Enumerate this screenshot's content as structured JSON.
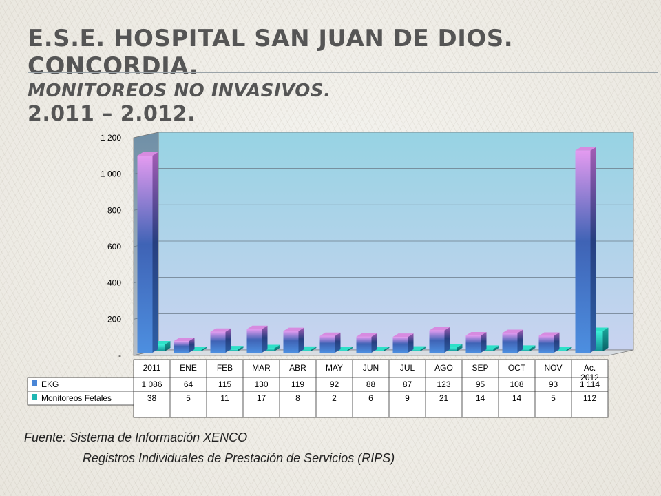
{
  "slide": {
    "title_line1": "E.S.E. HOSPITAL SAN JUAN DE DIOS.  CONCORDIA.",
    "title_line2": "MONITOREOS NO INVASIVOS.",
    "title_line3": "2.011 – 2.012.",
    "source_line1": "Fuente: Sistema de Información XENCO",
    "source_line2": "Registros Individuales de Prestación de Servicios (RIPS)"
  },
  "chart_data": {
    "type": "bar",
    "categories": [
      "2011",
      "ENE",
      "FEB",
      "MAR",
      "ABR",
      "MAY",
      "JUN",
      "JUL",
      "AGO",
      "SEP",
      "OCT",
      "NOV",
      "Ac.\n2012"
    ],
    "series": [
      {
        "name": "EKG",
        "values": [
          1086,
          64,
          115,
          130,
          119,
          92,
          88,
          87,
          123,
          95,
          108,
          93,
          1114
        ],
        "labels": [
          "1 086",
          "64",
          "115",
          "130",
          "119",
          "92",
          "88",
          "87",
          "123",
          "95",
          "108",
          "93",
          "1 114"
        ]
      },
      {
        "name": "Monitoreos Fetales",
        "values": [
          38,
          5,
          11,
          17,
          8,
          2,
          6,
          9,
          21,
          14,
          14,
          5,
          112
        ],
        "labels": [
          "38",
          "5",
          "11",
          "17",
          "8",
          "2",
          "6",
          "9",
          "21",
          "14",
          "14",
          "5",
          "112"
        ]
      }
    ],
    "y_ticks": [
      {
        "v": 0,
        "label": "-"
      },
      {
        "v": 200,
        "label": "200"
      },
      {
        "v": 400,
        "label": "400"
      },
      {
        "v": 600,
        "label": "600"
      },
      {
        "v": 800,
        "label": "800"
      },
      {
        "v": 1000,
        "label": "1 000"
      },
      {
        "v": 1200,
        "label": "1 200"
      }
    ],
    "ylim": [
      0,
      1200
    ],
    "grid": true,
    "legend": "data-table",
    "colors": {
      "EKG": "#4a86d6",
      "EKG_top": "#d78be0",
      "Monitoreos Fetales": "#1fb6b3",
      "Monitoreos Fetales_top": "#2ee0c8",
      "wall": "#9fd6e6"
    }
  }
}
